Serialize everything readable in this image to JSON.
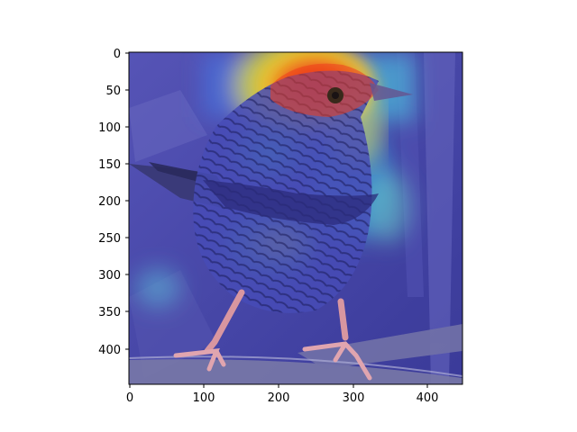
{
  "figure": {
    "image_subject": "bird perched on branch with jet-colormap attention heatmap overlay",
    "colormap": "jet",
    "x_axis": {
      "ticks": [
        "0",
        "100",
        "200",
        "300",
        "400"
      ]
    },
    "y_axis": {
      "ticks": [
        "0",
        "50",
        "100",
        "150",
        "200",
        "250",
        "300",
        "350",
        "400"
      ]
    },
    "x_range": [
      0,
      448
    ],
    "y_range": [
      448,
      0
    ],
    "colors": {
      "background_blue": "#4b4bb0",
      "hot_red": "#ff3010",
      "warm_yellow": "#f0e020",
      "cool_cyan": "#30e0d0",
      "branch_gray": "#8a8aa8"
    }
  }
}
